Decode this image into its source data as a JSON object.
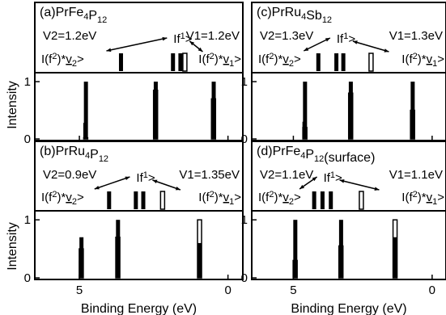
{
  "figure": {
    "ylabel": "Intensity",
    "xlabel_parts": [
      "Binding",
      "Energy",
      "(eV)"
    ],
    "x_ticks": [
      "5",
      "0"
    ],
    "y_ticks": [
      "1",
      "0"
    ]
  },
  "chart_data": [
    {
      "type": "bar",
      "panel": "a",
      "title_prefix": "(a)",
      "title_rest": "PrFe",
      "title_sub1": "4",
      "title_mid": "P",
      "title_sub2": "12",
      "title_tail": "",
      "v2_label": "V2=1.2eV",
      "v1_label": "V1=1.2eV",
      "xlabel": "Binding Energy (eV)",
      "ylabel": "Intensity",
      "xlim": [
        6.5,
        -0.5
      ],
      "ylim": [
        0,
        1.1
      ],
      "x_ticks": [
        5,
        0
      ],
      "y_ticks": [
        0,
        1
      ],
      "schematic_levels": {
        "f2v2": 3.6,
        "f1": [
          1.85,
          1.6
        ],
        "f2v1": 1.45
      },
      "peaks": [
        {
          "energy": 4.8,
          "open": 0.02,
          "filled": 0.28
        },
        {
          "energy": 4.78,
          "open": 0.0,
          "filled": 1.0
        },
        {
          "energy": 2.45,
          "open": 0.85,
          "filled": 0.3
        },
        {
          "energy": 2.43,
          "open": 0.0,
          "filled": 1.0
        },
        {
          "energy": 0.5,
          "open": 0.7,
          "filled": 0.3
        },
        {
          "energy": 0.48,
          "open": 0.0,
          "filled": 1.0
        }
      ],
      "axis_labels": "none"
    },
    {
      "type": "bar",
      "panel": "b",
      "title_prefix": "(b)",
      "title_rest": "PrRu",
      "title_sub1": "4",
      "title_mid": "P",
      "title_sub2": "12",
      "title_tail": "",
      "v2_label": "V2=0.9eV",
      "v1_label": "V1=1.35eV",
      "xlabel": "Binding Energy (eV)",
      "ylabel": "Intensity",
      "xlim": [
        6.5,
        -0.5
      ],
      "ylim": [
        0,
        1.1
      ],
      "x_ticks": [
        5,
        0
      ],
      "y_ticks": [
        0,
        1
      ],
      "schematic_levels": {
        "f2v2": 4.0,
        "f1": [
          3.1,
          2.85
        ],
        "f2v1": 2.2
      },
      "peaks": [
        {
          "energy": 4.95,
          "open": 0.5,
          "filled": 0.3
        },
        {
          "energy": 4.93,
          "open": 0.0,
          "filled": 0.7
        },
        {
          "energy": 3.72,
          "open": 0.7,
          "filled": 0.3
        },
        {
          "energy": 3.7,
          "open": 0.0,
          "filled": 1.0
        },
        {
          "energy": 0.97,
          "open": 1.0,
          "filled": 0.3
        },
        {
          "energy": 0.95,
          "open": 0.0,
          "filled": 0.6
        }
      ],
      "axis_labels": "x"
    },
    {
      "type": "bar",
      "panel": "c",
      "title_prefix": "(c)",
      "title_rest": "PrRu",
      "title_sub1": "4",
      "title_mid": "Sb",
      "title_sub2": "12",
      "title_tail": "",
      "v2_label": "V2=1.3eV",
      "v1_label": "V1=1.3eV",
      "xlabel": "Binding Energy (eV)",
      "ylabel": "Intensity",
      "xlim": [
        6.5,
        -0.5
      ],
      "ylim": [
        0,
        1.1
      ],
      "x_ticks": [
        5,
        0
      ],
      "y_ticks": [
        0,
        1
      ],
      "schematic_levels": {
        "f2v2": 4.1,
        "f1": [
          3.45,
          3.2
        ],
        "f2v1": 2.2
      },
      "peaks": [
        {
          "energy": 4.6,
          "open": 0.2,
          "filled": 0.3
        },
        {
          "energy": 4.58,
          "open": 0.0,
          "filled": 1.0
        },
        {
          "energy": 2.95,
          "open": 0.8,
          "filled": 0.3
        },
        {
          "energy": 2.93,
          "open": 0.0,
          "filled": 1.0
        },
        {
          "energy": 0.72,
          "open": 0.5,
          "filled": 0.3
        },
        {
          "energy": 0.7,
          "open": 0.0,
          "filled": 1.0
        }
      ],
      "axis_labels": "none"
    },
    {
      "type": "bar",
      "panel": "d",
      "title_prefix": "(d)",
      "title_rest": "PrFe",
      "title_sub1": "4",
      "title_mid": "P",
      "title_sub2": "12",
      "title_tail": "(surface)",
      "v2_label": "V2=1.1eV",
      "v1_label": "V1=1.1eV",
      "xlabel": "Binding Energy (eV)",
      "ylabel": "Intensity",
      "xlim": [
        6.5,
        -0.5
      ],
      "ylim": [
        0,
        1.1
      ],
      "x_ticks": [
        5,
        0
      ],
      "y_ticks": [
        0,
        1
      ],
      "schematic_levels": {
        "f2v2": 4.25,
        "f1": [
          3.95,
          3.65
        ],
        "f2v1": 2.55
      },
      "peaks": [
        {
          "energy": 4.95,
          "open": 0.3,
          "filled": 0.3
        },
        {
          "energy": 4.93,
          "open": 0.0,
          "filled": 1.0
        },
        {
          "energy": 3.3,
          "open": 0.55,
          "filled": 0.3
        },
        {
          "energy": 3.28,
          "open": 0.0,
          "filled": 1.0
        },
        {
          "energy": 1.35,
          "open": 1.0,
          "filled": 0.3
        },
        {
          "energy": 1.33,
          "open": 0.0,
          "filled": 0.7
        }
      ],
      "axis_labels": "x"
    }
  ]
}
